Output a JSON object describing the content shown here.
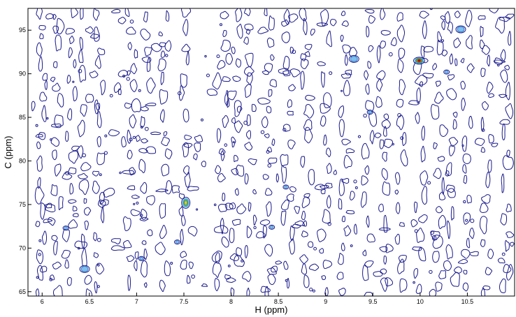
{
  "chart_data": {
    "type": "contour",
    "xlabel": "H (ppm)",
    "ylabel": "C (ppm)",
    "xlim": [
      5.85,
      11.0
    ],
    "ylim": [
      64.5,
      97.5
    ],
    "x_ticks": [
      {
        "value": 6,
        "label": "6"
      },
      {
        "value": 6.5,
        "label": "6.5"
      },
      {
        "value": 7,
        "label": "7"
      },
      {
        "value": 7.5,
        "label": "7.5"
      },
      {
        "value": 8,
        "label": "8"
      },
      {
        "value": 8.5,
        "label": "8.5"
      },
      {
        "value": 9,
        "label": "9"
      },
      {
        "value": 9.5,
        "label": "9.5"
      },
      {
        "value": 10,
        "label": "10"
      },
      {
        "value": 10.5,
        "label": "10.5"
      }
    ],
    "y_ticks": [
      {
        "value": 65,
        "label": "65"
      },
      {
        "value": 70,
        "label": "70"
      },
      {
        "value": 75,
        "label": "75"
      },
      {
        "value": 80,
        "label": "80"
      },
      {
        "value": 85,
        "label": "85"
      },
      {
        "value": 90,
        "label": "90"
      },
      {
        "value": 95,
        "label": "95"
      }
    ],
    "grid": false,
    "contour_color": "#1a1a8c",
    "noise_columns_ppm": [
      6.0,
      6.15,
      6.3,
      6.45,
      6.6,
      6.95,
      7.1,
      7.3,
      7.5,
      7.9,
      8.05,
      8.2,
      8.4,
      8.6,
      8.8,
      9.0,
      9.2,
      9.45,
      9.6,
      9.8,
      10.0,
      10.2,
      10.35,
      10.5,
      10.7,
      10.9
    ],
    "peaks": [
      {
        "x": 7.52,
        "y": 75.2,
        "intensity": "high"
      },
      {
        "x": 9.99,
        "y": 91.5,
        "intensity": "very-high"
      },
      {
        "x": 9.3,
        "y": 91.7,
        "intensity": "medium"
      },
      {
        "x": 10.43,
        "y": 95.1,
        "intensity": "medium"
      },
      {
        "x": 6.45,
        "y": 67.6,
        "intensity": "medium"
      },
      {
        "x": 7.05,
        "y": 68.8,
        "intensity": "low"
      },
      {
        "x": 8.58,
        "y": 77.0,
        "intensity": "low"
      },
      {
        "x": 8.43,
        "y": 72.4,
        "intensity": "low"
      },
      {
        "x": 9.47,
        "y": 85.6,
        "intensity": "low"
      },
      {
        "x": 10.28,
        "y": 90.2,
        "intensity": "low"
      },
      {
        "x": 6.25,
        "y": 72.3,
        "intensity": "low"
      },
      {
        "x": 7.43,
        "y": 70.7,
        "intensity": "low"
      }
    ]
  }
}
